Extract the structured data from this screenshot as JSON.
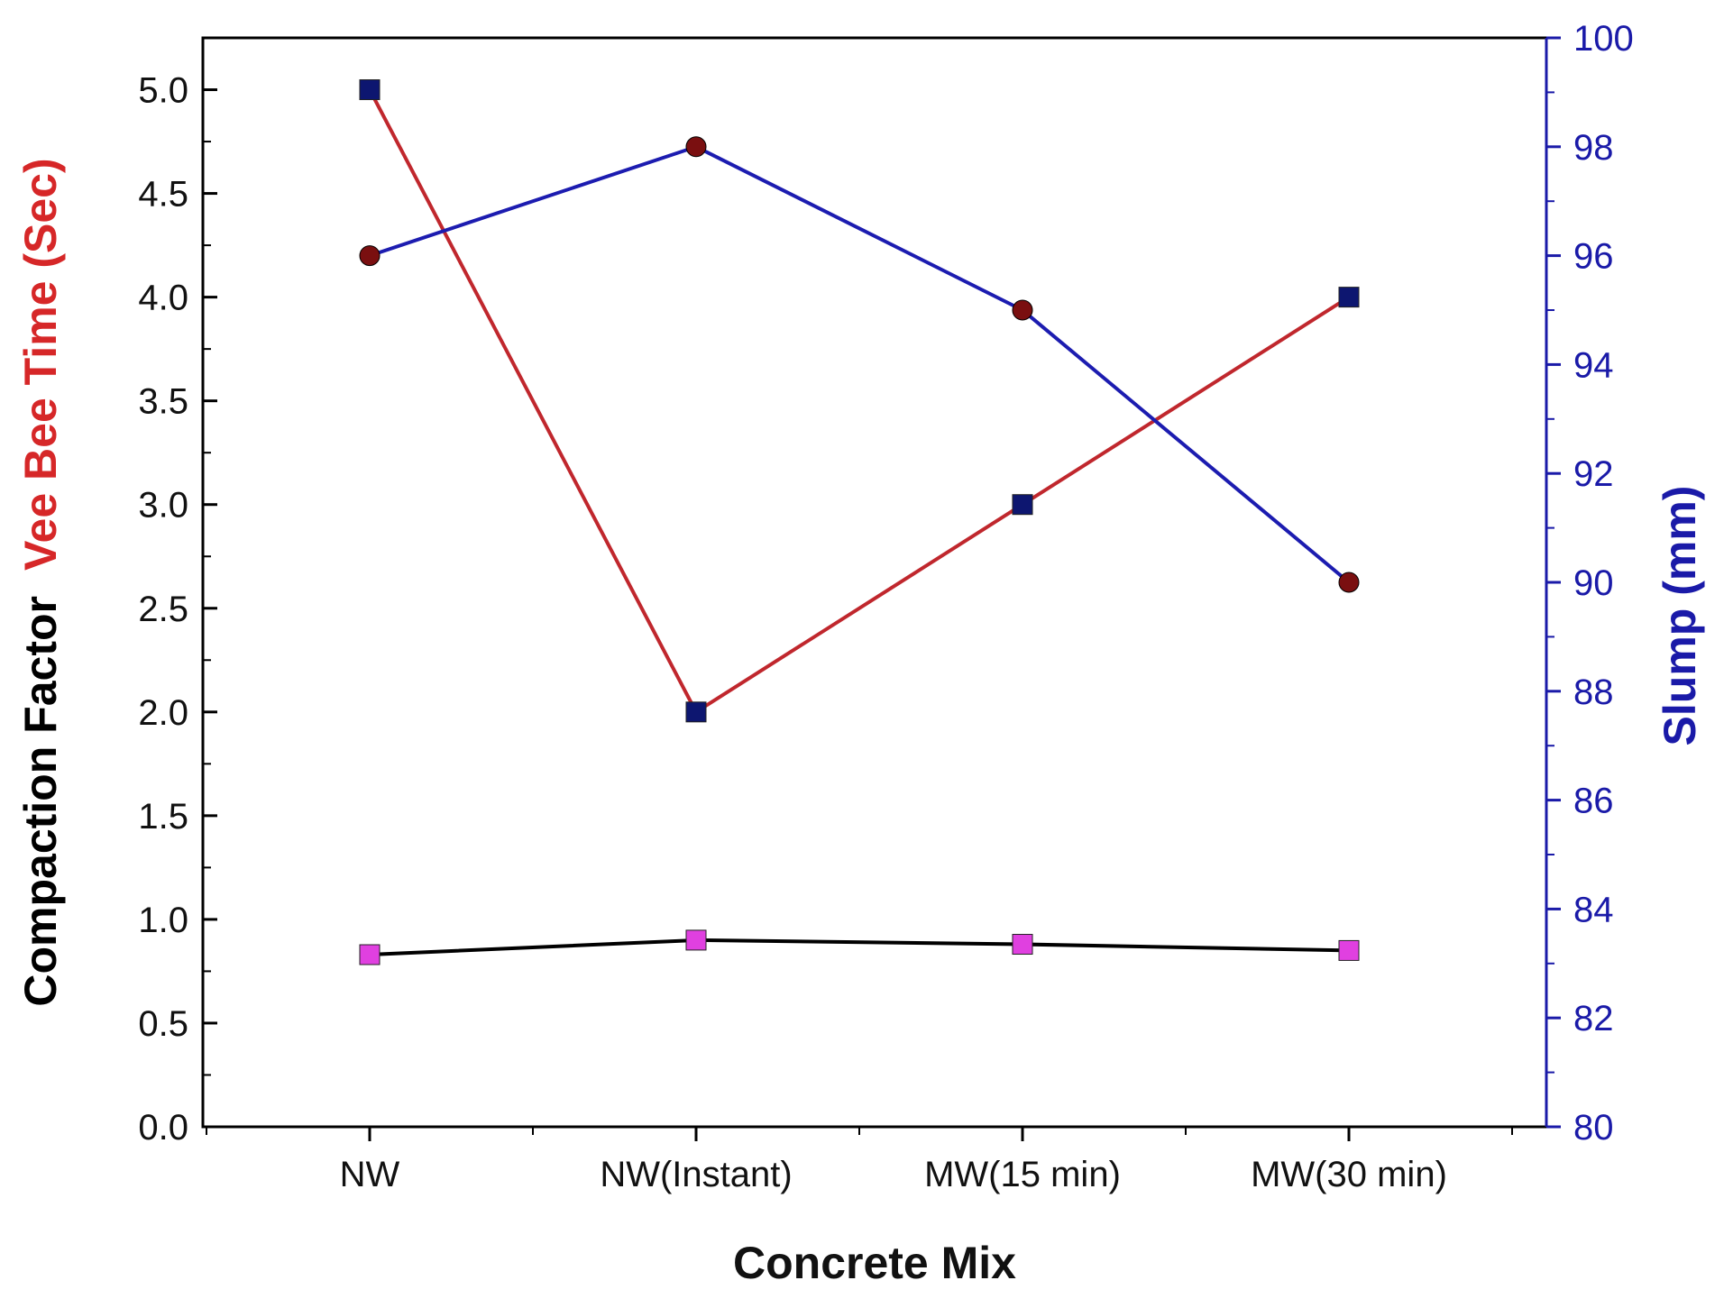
{
  "chart_data": {
    "type": "line",
    "title": "",
    "xlabel": "Concrete Mix",
    "categories": [
      "NW",
      "NW(Instant)",
      "MW(15 min)",
      "MW(30 min)"
    ],
    "left_axis": {
      "label_part1": "Compaction Factor",
      "label_part2": "Vee Bee Time (Sec)",
      "label_part1_color": "#000000",
      "label_part2_color": "#d62728",
      "ylim": [
        0,
        5.25
      ],
      "ticks": [
        "0.0",
        "0.5",
        "1.0",
        "1.5",
        "2.0",
        "2.5",
        "3.0",
        "3.5",
        "4.0",
        "4.5",
        "5.0"
      ]
    },
    "right_axis": {
      "label": "Slump (mm)",
      "color": "#1a1aa8",
      "ylim": [
        80,
        100
      ],
      "ticks": [
        "80",
        "82",
        "84",
        "86",
        "88",
        "90",
        "92",
        "94",
        "96",
        "98",
        "100"
      ]
    },
    "grid": false,
    "legend": "none",
    "series": [
      {
        "name": "Vee Bee Time (Sec)",
        "axis": "left",
        "values": [
          5.0,
          2.0,
          3.0,
          4.0
        ],
        "line_color": "#c0272d",
        "marker": "square",
        "marker_color": "#0d1670"
      },
      {
        "name": "Slump (mm)",
        "axis": "right",
        "values": [
          96,
          98,
          95,
          90
        ],
        "line_color": "#1c1cb0",
        "marker": "circle",
        "marker_color": "#7a0f10"
      },
      {
        "name": "Compaction Factor",
        "axis": "left",
        "values": [
          0.83,
          0.9,
          0.88,
          0.85
        ],
        "line_color": "#000000",
        "marker": "square",
        "marker_color": "#e040e0"
      }
    ]
  }
}
